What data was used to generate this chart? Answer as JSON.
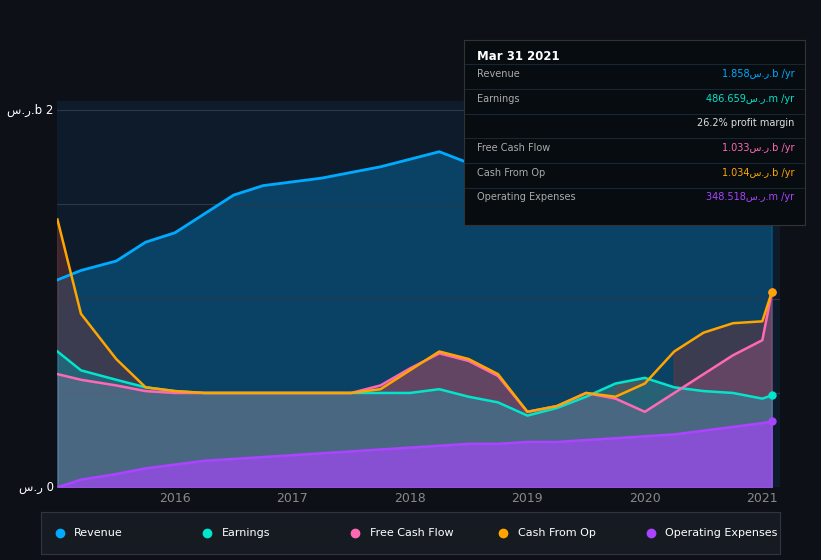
{
  "bg": "#0d1117",
  "plot_bg": "#0d1b2a",
  "colors": {
    "revenue": "#00aaff",
    "earnings": "#00e5cc",
    "free_cash_flow": "#ff69b4",
    "cash_from_op": "#ffa500",
    "operating_expenses": "#aa44ff"
  },
  "legend_labels": [
    "Revenue",
    "Earnings",
    "Free Cash Flow",
    "Cash From Op",
    "Operating Expenses"
  ],
  "info_title": "Mar 31 2021",
  "info_rows": [
    {
      "label": "Revenue",
      "value": "1.858س.ر.b /yr",
      "color": "#00aaff"
    },
    {
      "label": "Earnings",
      "value": "486.659س.ر.m /yr",
      "color": "#00e5cc"
    },
    {
      "label": "",
      "value": "26.2% profit margin",
      "color": "#dddddd"
    },
    {
      "label": "Free Cash Flow",
      "value": "1.033س.ر.b /yr",
      "color": "#ff69b4"
    },
    {
      "label": "Cash From Op",
      "value": "1.034س.ر.b /yr",
      "color": "#ffa500"
    },
    {
      "label": "Operating Expenses",
      "value": "348.518س.ر.m /yr",
      "color": "#aa44ff"
    }
  ],
  "x": [
    2015.0,
    2015.2,
    2015.5,
    2015.75,
    2016.0,
    2016.25,
    2016.5,
    2016.75,
    2017.0,
    2017.25,
    2017.5,
    2017.75,
    2018.0,
    2018.25,
    2018.5,
    2018.75,
    2019.0,
    2019.25,
    2019.5,
    2019.75,
    2020.0,
    2020.25,
    2020.5,
    2020.75,
    2021.0,
    2021.08
  ],
  "revenue": [
    1.1,
    1.15,
    1.2,
    1.3,
    1.35,
    1.45,
    1.55,
    1.6,
    1.62,
    1.64,
    1.67,
    1.7,
    1.74,
    1.78,
    1.72,
    1.75,
    1.8,
    1.82,
    1.85,
    1.9,
    1.95,
    1.92,
    1.88,
    1.82,
    1.7,
    1.858
  ],
  "earnings": [
    0.72,
    0.62,
    0.57,
    0.53,
    0.51,
    0.5,
    0.5,
    0.5,
    0.5,
    0.5,
    0.5,
    0.5,
    0.5,
    0.52,
    0.48,
    0.45,
    0.38,
    0.42,
    0.48,
    0.55,
    0.58,
    0.53,
    0.51,
    0.5,
    0.47,
    0.487
  ],
  "cash_from_op": [
    1.42,
    0.92,
    0.68,
    0.53,
    0.51,
    0.5,
    0.5,
    0.5,
    0.5,
    0.5,
    0.5,
    0.52,
    0.62,
    0.72,
    0.68,
    0.6,
    0.4,
    0.43,
    0.5,
    0.48,
    0.55,
    0.72,
    0.82,
    0.87,
    0.88,
    1.034
  ],
  "free_cash_flow": [
    0.6,
    0.57,
    0.54,
    0.51,
    0.5,
    0.5,
    0.5,
    0.5,
    0.5,
    0.5,
    0.5,
    0.54,
    0.63,
    0.71,
    0.67,
    0.59,
    0.4,
    0.43,
    0.5,
    0.47,
    0.4,
    0.5,
    0.6,
    0.7,
    0.78,
    1.033
  ],
  "operating_expenses": [
    0.0,
    0.04,
    0.07,
    0.1,
    0.12,
    0.14,
    0.15,
    0.16,
    0.17,
    0.18,
    0.19,
    0.2,
    0.21,
    0.22,
    0.23,
    0.23,
    0.24,
    0.24,
    0.25,
    0.26,
    0.27,
    0.28,
    0.3,
    0.32,
    0.34,
    0.349
  ],
  "xlim": [
    2015.0,
    2021.15
  ],
  "ylim": [
    0,
    2.05
  ],
  "ytick_vals": [
    0,
    0.5,
    1.0,
    1.5,
    2.0
  ],
  "xtick_vals": [
    2016,
    2017,
    2018,
    2019,
    2020,
    2021
  ]
}
